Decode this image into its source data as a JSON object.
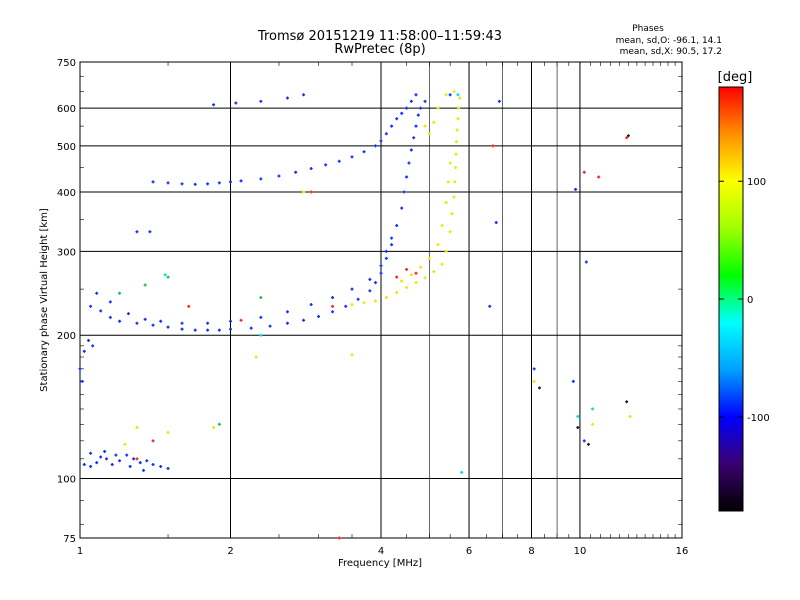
{
  "header": {
    "title_line1": "Tromsø 20151219 11:58:00–11:59:43",
    "title_line2": "RwPretec (8p)"
  },
  "phases_box": {
    "title": "Phases",
    "line_o": "mean, sd,O: -96.1, 14.1",
    "line_x": "mean, sd,X:  90.5, 17.2"
  },
  "colorbar": {
    "unit_label": "[deg]",
    "range": [
      -180,
      180
    ],
    "ticks": [
      {
        "value": 100,
        "label": "100"
      },
      {
        "value": 0,
        "label": "0"
      },
      {
        "value": -100,
        "label": "-100"
      }
    ],
    "stops": [
      "#000000",
      "#3a0070",
      "#0000ff",
      "#00a0ff",
      "#00ffff",
      "#00ff00",
      "#a0ff00",
      "#ffff00",
      "#ff9000",
      "#ff0000"
    ]
  },
  "chart_data": {
    "type": "scatter",
    "xlabel": "Frequency [MHz]",
    "ylabel": "Stationary phase Virtual Height [km]",
    "xscale": "log",
    "yscale": "log",
    "xlim": [
      1,
      16
    ],
    "ylim": [
      75,
      750
    ],
    "xticks": [
      {
        "value": 1,
        "label": "1"
      },
      {
        "value": 2,
        "label": "2"
      },
      {
        "value": 4,
        "label": "4"
      },
      {
        "value": 6,
        "label": "6"
      },
      {
        "value": 8,
        "label": "8"
      },
      {
        "value": 10,
        "label": "10"
      },
      {
        "value": 16,
        "label": "16"
      }
    ],
    "yticks": [
      {
        "value": 75,
        "label": "75"
      },
      {
        "value": 100,
        "label": "100"
      },
      {
        "value": 200,
        "label": "200"
      },
      {
        "value": 300,
        "label": "300"
      },
      {
        "value": 400,
        "label": "400"
      },
      {
        "value": 500,
        "label": "500"
      },
      {
        "value": 600,
        "label": "600"
      },
      {
        "value": 750,
        "label": "750"
      }
    ],
    "major_xgrid": [
      1,
      2,
      4,
      6,
      8,
      10,
      16
    ],
    "minor_xgrid": [
      5,
      7,
      9
    ],
    "ygrid": [
      75,
      100,
      200,
      300,
      400,
      500,
      600,
      750
    ],
    "series": [
      {
        "color": "#1030ff",
        "points": [
          [
            1.02,
            107
          ],
          [
            1.05,
            106
          ],
          [
            1.08,
            108
          ],
          [
            1.1,
            111
          ],
          [
            1.13,
            110
          ],
          [
            1.16,
            107
          ],
          [
            1.2,
            109
          ],
          [
            1.24,
            112
          ],
          [
            1.28,
            110
          ],
          [
            1.32,
            108
          ],
          [
            1.36,
            109
          ],
          [
            1.4,
            107
          ],
          [
            1.45,
            106
          ],
          [
            1.5,
            105
          ],
          [
            1.05,
            113
          ],
          [
            1.12,
            114
          ],
          [
            1.18,
            112
          ],
          [
            1.26,
            106
          ],
          [
            1.34,
            104
          ],
          [
            1.05,
            230
          ],
          [
            1.1,
            225
          ],
          [
            1.15,
            218
          ],
          [
            1.2,
            214
          ],
          [
            1.3,
            212
          ],
          [
            1.4,
            210
          ],
          [
            1.5,
            208
          ],
          [
            1.6,
            206
          ],
          [
            1.7,
            205
          ],
          [
            1.8,
            205
          ],
          [
            1.9,
            205
          ],
          [
            2.0,
            206
          ],
          [
            2.2,
            207
          ],
          [
            2.4,
            209
          ],
          [
            2.6,
            212
          ],
          [
            2.8,
            215
          ],
          [
            3.0,
            219
          ],
          [
            3.2,
            224
          ],
          [
            3.4,
            230
          ],
          [
            3.6,
            238
          ],
          [
            3.8,
            248
          ],
          [
            3.9,
            258
          ],
          [
            4.0,
            270
          ],
          [
            4.1,
            290
          ],
          [
            4.2,
            310
          ],
          [
            4.3,
            340
          ],
          [
            4.4,
            370
          ],
          [
            4.45,
            400
          ],
          [
            4.5,
            430
          ],
          [
            4.55,
            460
          ],
          [
            4.6,
            490
          ],
          [
            4.65,
            520
          ],
          [
            4.7,
            550
          ],
          [
            4.75,
            580
          ],
          [
            4.8,
            600
          ],
          [
            1.08,
            245
          ],
          [
            1.15,
            235
          ],
          [
            1.25,
            222
          ],
          [
            1.35,
            216
          ],
          [
            1.45,
            214
          ],
          [
            1.6,
            212
          ],
          [
            1.8,
            212
          ],
          [
            2.0,
            214
          ],
          [
            2.3,
            218
          ],
          [
            2.6,
            224
          ],
          [
            2.9,
            232
          ],
          [
            3.2,
            240
          ],
          [
            3.5,
            250
          ],
          [
            3.8,
            262
          ],
          [
            4.0,
            280
          ],
          [
            4.1,
            300
          ],
          [
            4.2,
            320
          ],
          [
            1.4,
            420
          ],
          [
            1.5,
            418
          ],
          [
            1.6,
            416
          ],
          [
            1.7,
            415
          ],
          [
            1.8,
            416
          ],
          [
            1.9,
            418
          ],
          [
            2.0,
            420
          ],
          [
            2.1,
            422
          ],
          [
            2.3,
            426
          ],
          [
            2.5,
            432
          ],
          [
            2.7,
            440
          ],
          [
            2.9,
            448
          ],
          [
            3.1,
            456
          ],
          [
            3.3,
            464
          ],
          [
            3.5,
            474
          ],
          [
            3.7,
            486
          ],
          [
            3.9,
            500
          ],
          [
            4.0,
            512
          ],
          [
            4.1,
            530
          ],
          [
            4.2,
            550
          ],
          [
            4.3,
            570
          ],
          [
            4.4,
            585
          ],
          [
            4.5,
            600
          ],
          [
            4.6,
            620
          ],
          [
            4.7,
            640
          ],
          [
            1.85,
            610
          ],
          [
            2.05,
            615
          ],
          [
            2.3,
            620
          ],
          [
            2.6,
            630
          ],
          [
            2.8,
            640
          ],
          [
            1.02,
            185
          ],
          [
            1.04,
            195
          ],
          [
            1.06,
            190
          ],
          [
            1.0,
            170
          ],
          [
            1.01,
            160
          ],
          [
            1.3,
            330
          ],
          [
            1.38,
            330
          ],
          [
            8.1,
            170
          ],
          [
            9.7,
            160
          ],
          [
            10.2,
            120
          ],
          [
            10.3,
            285
          ],
          [
            6.6,
            230
          ],
          [
            6.8,
            345
          ],
          [
            9.8,
            405
          ],
          [
            6.9,
            620
          ],
          [
            4.9,
            620
          ],
          [
            5.5,
            640
          ]
        ]
      },
      {
        "color": "#e8e800",
        "points": [
          [
            3.5,
            232
          ],
          [
            3.7,
            234
          ],
          [
            3.9,
            236
          ],
          [
            4.1,
            240
          ],
          [
            4.3,
            246
          ],
          [
            4.5,
            252
          ],
          [
            4.7,
            258
          ],
          [
            4.9,
            264
          ],
          [
            5.1,
            272
          ],
          [
            5.3,
            282
          ],
          [
            5.4,
            300
          ],
          [
            5.5,
            330
          ],
          [
            5.55,
            360
          ],
          [
            5.6,
            390
          ],
          [
            5.62,
            420
          ],
          [
            5.64,
            450
          ],
          [
            5.65,
            480
          ],
          [
            5.66,
            510
          ],
          [
            5.68,
            540
          ],
          [
            5.7,
            570
          ],
          [
            5.72,
            600
          ],
          [
            5.75,
            630
          ],
          [
            4.4,
            260
          ],
          [
            4.6,
            268
          ],
          [
            4.8,
            278
          ],
          [
            5.0,
            290
          ],
          [
            5.2,
            310
          ],
          [
            5.3,
            340
          ],
          [
            5.4,
            380
          ],
          [
            5.45,
            420
          ],
          [
            5.5,
            460
          ],
          [
            4.9,
            550
          ],
          [
            5.0,
            530
          ],
          [
            5.1,
            560
          ],
          [
            5.2,
            600
          ],
          [
            5.4,
            640
          ],
          [
            5.6,
            650
          ],
          [
            1.3,
            128
          ],
          [
            1.5,
            125
          ],
          [
            1.23,
            118
          ],
          [
            1.85,
            128
          ],
          [
            2.25,
            180
          ],
          [
            8.1,
            160
          ],
          [
            10.6,
            130
          ],
          [
            12.6,
            135
          ],
          [
            2.8,
            400
          ],
          [
            3.5,
            182
          ]
        ]
      },
      {
        "color": "#ff2020",
        "points": [
          [
            1.3,
            110
          ],
          [
            1.4,
            120
          ],
          [
            4.3,
            265
          ],
          [
            4.5,
            275
          ],
          [
            4.7,
            270
          ],
          [
            2.1,
            215
          ],
          [
            2.9,
            400
          ],
          [
            3.2,
            230
          ],
          [
            12.4,
            520
          ],
          [
            10.9,
            430
          ],
          [
            1.65,
            230
          ],
          [
            6.7,
            500
          ],
          [
            10.2,
            440
          ],
          [
            3.3,
            75
          ]
        ]
      },
      {
        "color": "#00cc44",
        "points": [
          [
            1.35,
            255
          ],
          [
            1.2,
            245
          ],
          [
            1.9,
            130
          ],
          [
            2.3,
            240
          ],
          [
            1.5,
            265
          ]
        ]
      },
      {
        "color": "#00dddd",
        "points": [
          [
            5.7,
            640
          ],
          [
            1.48,
            268
          ],
          [
            2.3,
            200
          ],
          [
            5.8,
            103
          ],
          [
            10.6,
            140
          ],
          [
            9.9,
            135
          ]
        ]
      },
      {
        "color": "#222222",
        "points": [
          [
            12.5,
            525
          ],
          [
            12.4,
            145
          ],
          [
            10.4,
            118
          ],
          [
            9.9,
            128
          ],
          [
            8.3,
            155
          ]
        ]
      }
    ]
  }
}
